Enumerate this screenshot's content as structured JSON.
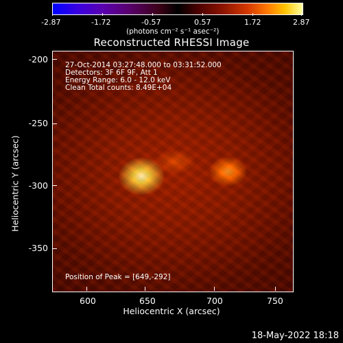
{
  "colorbar": {
    "ticks": [
      "-2.87",
      "-1.72",
      "-0.57",
      "0.57",
      "1.72",
      "2.87"
    ],
    "unit_label": "(photons cm⁻² s⁻¹ asec⁻²)"
  },
  "title": "Reconstructed RHESSI Image",
  "info": {
    "line1": "27-Oct-2014 03:27:48.000 to 03:31:52.000",
    "line2": "Detectors: 3F 6F 9F, Att 1",
    "line3": "Energy Range: 6.0 - 12.0 keV",
    "line4": "Clean    Total counts: 8.49E+04"
  },
  "peak": "Position of Peak = [649,-292]",
  "axes": {
    "xlabel": "Heliocentric X (arcsec)",
    "ylabel": "Heliocentric Y (arcsec)",
    "xticks": [
      "600",
      "650",
      "700",
      "750"
    ],
    "yticks": [
      "-200",
      "-250",
      "-300",
      "-350"
    ]
  },
  "datestamp": "18-May-2022 18:18"
}
